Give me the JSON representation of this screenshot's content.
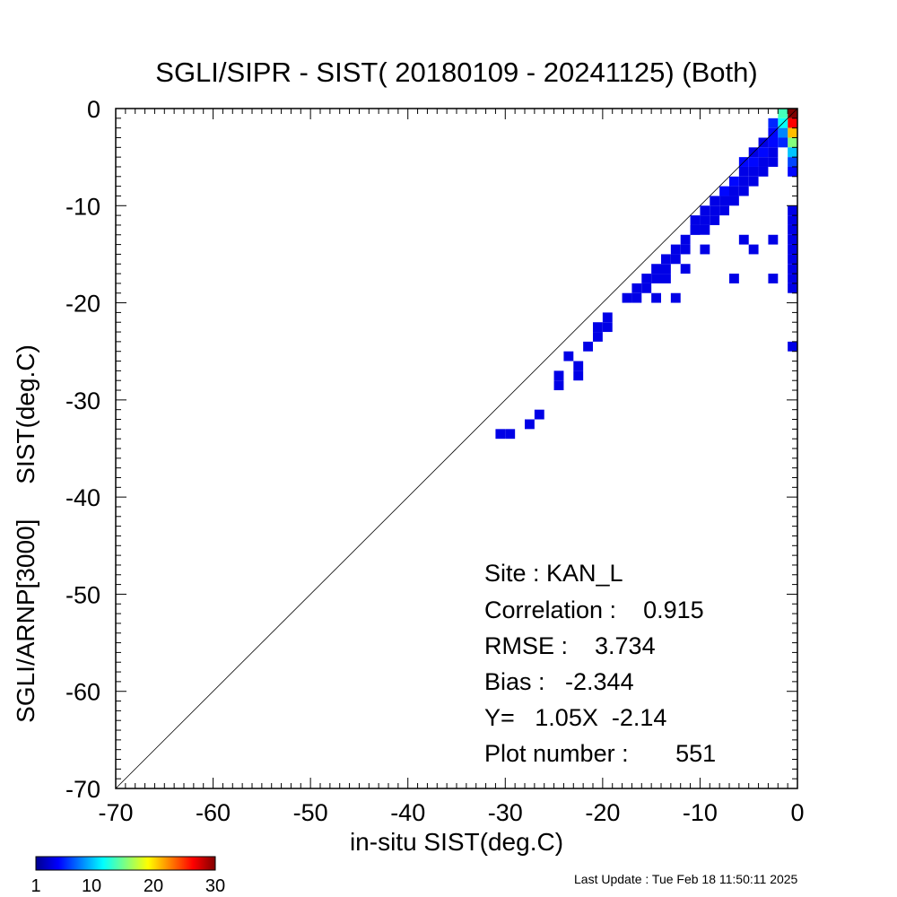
{
  "chart_data": {
    "type": "heatmap",
    "title": "SGLI/SIPR - SIST( 20180109 - 20241125) (Both)",
    "xlabel": "in-situ SIST(deg.C)",
    "ylabel": "SGLI/ARNP[3000]     SIST(deg.C)",
    "xlim": [
      -70,
      0
    ],
    "ylim": [
      -70,
      0
    ],
    "x_ticks": [
      "-70",
      "-60",
      "-50",
      "-40",
      "-30",
      "-20",
      "-10",
      "0"
    ],
    "y_ticks": [
      "0",
      "-10",
      "-20",
      "-30",
      "-40",
      "-50",
      "-60",
      "-70"
    ],
    "bin_size": 1,
    "one_to_one_line": true,
    "grid": false,
    "colorbar": {
      "min": 1,
      "max": 30,
      "tick_labels": [
        "1",
        "10",
        "20",
        "30"
      ],
      "colormap": "jet"
    },
    "stats": {
      "site": "Site : KAN_L",
      "correlation": "Correlation :    0.915",
      "rmse": "RMSE :    3.734",
      "bias": "Bias :   -2.344",
      "regression": "Y=   1.05X  -2.14",
      "plot_number": "Plot number :       551"
    },
    "bins": [
      [
        -0.5,
        -0.5,
        30
      ],
      [
        -0.5,
        -1.5,
        26
      ],
      [
        -0.5,
        -2.5,
        20
      ],
      [
        -0.5,
        -3.5,
        14
      ],
      [
        -0.5,
        -4.5,
        8
      ],
      [
        -0.5,
        -5.5,
        4
      ],
      [
        -0.5,
        -6.5,
        2
      ],
      [
        -1.5,
        -0.5,
        12
      ],
      [
        -1.5,
        -1.5,
        10
      ],
      [
        -1.5,
        -2.5,
        6
      ],
      [
        -1.5,
        -3.5,
        3
      ],
      [
        -2.5,
        -1.5,
        3
      ],
      [
        -2.5,
        -2.5,
        2
      ],
      [
        -2.5,
        -3.5,
        2
      ],
      [
        -2.5,
        -4.5,
        1
      ],
      [
        -2.5,
        -5.5,
        1
      ],
      [
        -3.5,
        -3.5,
        1
      ],
      [
        -3.5,
        -4.5,
        2
      ],
      [
        -3.5,
        -5.5,
        1
      ],
      [
        -3.5,
        -6.5,
        1
      ],
      [
        -4.5,
        -4.5,
        1
      ],
      [
        -4.5,
        -5.5,
        2
      ],
      [
        -4.5,
        -6.5,
        1
      ],
      [
        -4.5,
        -7.5,
        1
      ],
      [
        -5.5,
        -5.5,
        2
      ],
      [
        -5.5,
        -6.5,
        1
      ],
      [
        -5.5,
        -7.5,
        1
      ],
      [
        -5.5,
        -8.5,
        1
      ],
      [
        -6.5,
        -7.5,
        2
      ],
      [
        -6.5,
        -8.5,
        1
      ],
      [
        -6.5,
        -9.5,
        1
      ],
      [
        -7.5,
        -8.5,
        2
      ],
      [
        -7.5,
        -9.5,
        1
      ],
      [
        -7.5,
        -10.5,
        1
      ],
      [
        -8.5,
        -9.5,
        1
      ],
      [
        -8.5,
        -10.5,
        1
      ],
      [
        -8.5,
        -11.5,
        1
      ],
      [
        -9.5,
        -10.5,
        1
      ],
      [
        -9.5,
        -11.5,
        1
      ],
      [
        -9.5,
        -12.5,
        1
      ],
      [
        -10.5,
        -11.5,
        1
      ],
      [
        -10.5,
        -12.5,
        1
      ],
      [
        -11.5,
        -13.5,
        1
      ],
      [
        -11.5,
        -14.5,
        1
      ],
      [
        -12.5,
        -14.5,
        1
      ],
      [
        -12.5,
        -15.5,
        1
      ],
      [
        -13.5,
        -15.5,
        1
      ],
      [
        -13.5,
        -16.5,
        1
      ],
      [
        -13.5,
        -17.5,
        1
      ],
      [
        -14.5,
        -16.5,
        1
      ],
      [
        -14.5,
        -17.5,
        1
      ],
      [
        -15.5,
        -17.5,
        1
      ],
      [
        -15.5,
        -18.5,
        1
      ],
      [
        -16.5,
        -18.5,
        1
      ],
      [
        -16.5,
        -19.5,
        1
      ],
      [
        -17.5,
        -19.5,
        1
      ],
      [
        -19.5,
        -21.5,
        1
      ],
      [
        -19.5,
        -22.5,
        1
      ],
      [
        -20.5,
        -22.5,
        1
      ],
      [
        -20.5,
        -23.5,
        1
      ],
      [
        -21.5,
        -24.5,
        1
      ],
      [
        -22.5,
        -26.5,
        1
      ],
      [
        -22.5,
        -27.5,
        1
      ],
      [
        -23.5,
        -25.5,
        1
      ],
      [
        -24.5,
        -27.5,
        1
      ],
      [
        -24.5,
        -28.5,
        1
      ],
      [
        -26.5,
        -31.5,
        1
      ],
      [
        -27.5,
        -32.5,
        1
      ],
      [
        -29.5,
        -33.5,
        1
      ],
      [
        -30.5,
        -33.5,
        1
      ],
      [
        -0.5,
        -10.5,
        1
      ],
      [
        -0.5,
        -11.5,
        1
      ],
      [
        -0.5,
        -12.5,
        1
      ],
      [
        -0.5,
        -13.5,
        1
      ],
      [
        -0.5,
        -14.5,
        1
      ],
      [
        -0.5,
        -15.5,
        1
      ],
      [
        -0.5,
        -16.5,
        1
      ],
      [
        -0.5,
        -17.5,
        1
      ],
      [
        -0.5,
        -18.5,
        1
      ],
      [
        -0.5,
        -24.5,
        1
      ],
      [
        -2.5,
        -17.5,
        1
      ],
      [
        -2.5,
        -13.5,
        1
      ],
      [
        -6.5,
        -17.5,
        1
      ],
      [
        -5.5,
        -13.5,
        1
      ],
      [
        -4.5,
        -14.5,
        1
      ],
      [
        -9.5,
        -14.5,
        1
      ],
      [
        -10.5,
        -12.5,
        1
      ],
      [
        -14.5,
        -19.5,
        1
      ],
      [
        -12.5,
        -19.5,
        1
      ],
      [
        -11.5,
        -16.5,
        1
      ]
    ]
  },
  "footer": {
    "last_update": "Last Update : Tue Feb 18 11:50:11 2025"
  }
}
